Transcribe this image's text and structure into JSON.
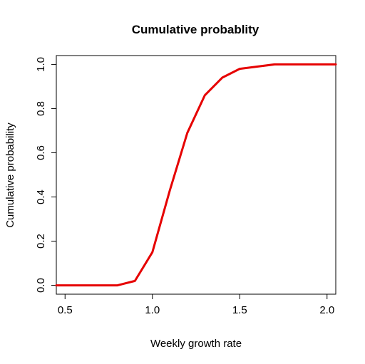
{
  "chart_data": {
    "type": "line",
    "title": "Cumulative probablity",
    "xlabel": "Weekly growth rate",
    "ylabel": "Cumulative probability",
    "xlim": [
      0.45,
      2.05
    ],
    "ylim": [
      -0.04,
      1.04
    ],
    "x_ticks": [
      0.5,
      1.0,
      1.5,
      2.0
    ],
    "x_tick_labels": [
      "0.5",
      "1.0",
      "1.5",
      "2.0"
    ],
    "y_ticks": [
      0.0,
      0.2,
      0.4,
      0.6,
      0.8,
      1.0
    ],
    "y_tick_labels": [
      "0.0",
      "0.2",
      "0.4",
      "0.6",
      "0.8",
      "1.0"
    ],
    "grid": false,
    "series": [
      {
        "color": "#e60000",
        "x": [
          0.45,
          0.5,
          0.6,
          0.7,
          0.8,
          0.9,
          1.0,
          1.1,
          1.2,
          1.3,
          1.4,
          1.5,
          1.6,
          1.7,
          1.8,
          1.9,
          2.0,
          2.05
        ],
        "y": [
          0.0,
          0.0,
          0.0,
          0.0,
          0.0,
          0.02,
          0.15,
          0.43,
          0.69,
          0.86,
          0.94,
          0.98,
          0.99,
          1.0,
          1.0,
          1.0,
          1.0,
          1.0
        ]
      }
    ]
  }
}
